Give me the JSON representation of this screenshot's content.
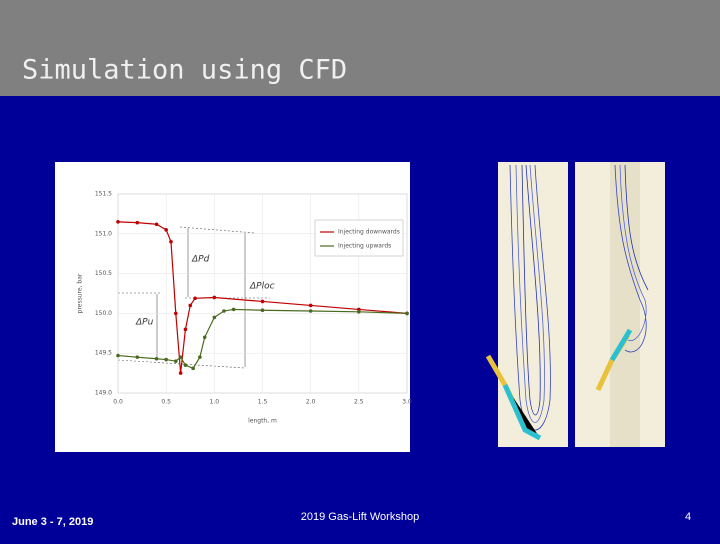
{
  "header": {
    "title": "Simulation using CFD"
  },
  "footer": {
    "date": "June 3 - 7, 2019",
    "event": "2019 Gas-Lift Workshop",
    "page": "4"
  },
  "chart_data": {
    "type": "line",
    "xlabel": "length, m",
    "ylabel": "pressure, bar",
    "xlim": [
      0,
      3
    ],
    "ylim": [
      149,
      151.5
    ],
    "xticks": [
      {
        "value": 0,
        "label": "0.0"
      },
      0.5,
      {
        "value": 1,
        "label": "1.0"
      },
      1.5,
      {
        "value": 2,
        "label": "2.0"
      },
      2.5,
      {
        "value": 3,
        "label": "3.0"
      }
    ],
    "yticks": [
      {
        "value": 149,
        "label": "149.0"
      },
      149.5,
      {
        "value": 150,
        "label": "150.0"
      },
      150.5,
      {
        "value": 151,
        "label": "151.0"
      },
      151.5
    ],
    "legend": "upper right",
    "annotations": [
      "ΔPd",
      "ΔPloc",
      "ΔPu"
    ],
    "series": [
      {
        "name": "Injecting downwards",
        "color": "#c00000",
        "x": [
          0,
          0.2,
          0.4,
          0.5,
          0.55,
          0.6,
          0.65,
          0.7,
          0.75,
          0.8,
          1.0,
          1.5,
          2.0,
          2.5,
          3.0
        ],
        "values": [
          151.15,
          151.14,
          151.12,
          151.05,
          150.9,
          150.0,
          149.25,
          149.8,
          150.1,
          150.19,
          150.2,
          150.15,
          150.1,
          150.05,
          150.0
        ]
      },
      {
        "name": "Injecting upwards",
        "color": "#4a6b1f",
        "x": [
          0,
          0.2,
          0.4,
          0.5,
          0.6,
          0.65,
          0.7,
          0.78,
          0.85,
          0.9,
          1.0,
          1.1,
          1.2,
          1.5,
          2.0,
          2.5,
          3.0
        ],
        "values": [
          149.47,
          149.45,
          149.43,
          149.42,
          149.4,
          149.45,
          149.35,
          149.31,
          149.45,
          149.7,
          149.95,
          150.03,
          150.05,
          150.04,
          150.03,
          150.02,
          150.0
        ]
      }
    ]
  }
}
